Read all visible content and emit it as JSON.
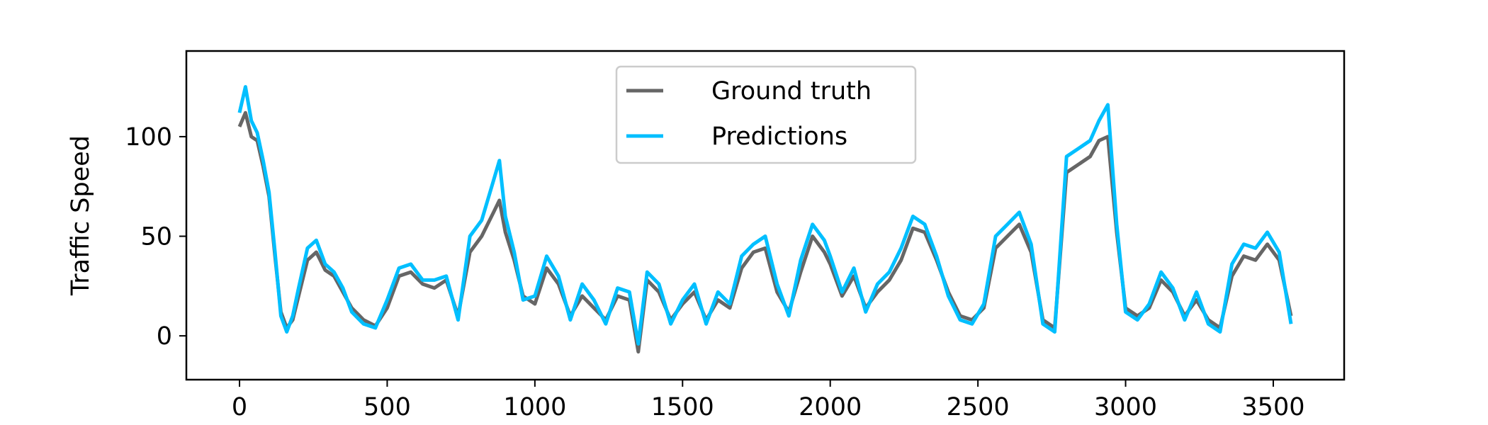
{
  "chart_data": {
    "type": "line",
    "title": "",
    "xlabel": "",
    "ylabel": "Traffic Speed",
    "xlim": [
      -180,
      3740
    ],
    "ylim": [
      -22,
      143
    ],
    "xticks": [
      0,
      500,
      1000,
      1500,
      2000,
      2500,
      3000,
      3500
    ],
    "yticks": [
      0,
      50,
      100
    ],
    "grid": false,
    "legend_position": "top-center",
    "series": [
      {
        "name": "Ground truth",
        "color": "#666666",
        "x": [
          0,
          20,
          40,
          60,
          80,
          100,
          120,
          140,
          160,
          180,
          200,
          230,
          260,
          290,
          320,
          350,
          380,
          420,
          460,
          500,
          540,
          580,
          620,
          660,
          700,
          740,
          780,
          820,
          860,
          880,
          900,
          930,
          960,
          1000,
          1040,
          1080,
          1120,
          1160,
          1200,
          1240,
          1280,
          1320,
          1350,
          1380,
          1420,
          1460,
          1500,
          1540,
          1580,
          1620,
          1660,
          1700,
          1740,
          1780,
          1820,
          1860,
          1900,
          1940,
          1980,
          2000,
          2040,
          2080,
          2120,
          2160,
          2200,
          2240,
          2280,
          2320,
          2360,
          2400,
          2440,
          2480,
          2520,
          2560,
          2600,
          2640,
          2680,
          2720,
          2760,
          2800,
          2840,
          2880,
          2910,
          2940,
          2970,
          3000,
          3040,
          3080,
          3120,
          3160,
          3200,
          3240,
          3280,
          3320,
          3360,
          3400,
          3440,
          3480,
          3520,
          3560
        ],
        "y": [
          105,
          112,
          100,
          98,
          85,
          70,
          40,
          12,
          4,
          8,
          20,
          38,
          42,
          33,
          30,
          22,
          14,
          8,
          5,
          14,
          30,
          32,
          26,
          24,
          28,
          10,
          42,
          50,
          62,
          68,
          52,
          38,
          20,
          16,
          34,
          26,
          10,
          20,
          14,
          8,
          20,
          18,
          -8,
          28,
          22,
          8,
          16,
          22,
          8,
          18,
          14,
          34,
          42,
          44,
          22,
          12,
          32,
          50,
          42,
          36,
          20,
          30,
          14,
          22,
          28,
          38,
          54,
          52,
          38,
          22,
          10,
          8,
          14,
          44,
          50,
          56,
          42,
          8,
          4,
          82,
          86,
          90,
          98,
          100,
          52,
          14,
          10,
          14,
          28,
          22,
          10,
          18,
          8,
          4,
          30,
          40,
          38,
          46,
          38,
          10
        ]
      },
      {
        "name": "Predictions",
        "color": "#00bfff",
        "x": [
          0,
          20,
          40,
          60,
          80,
          100,
          120,
          140,
          160,
          180,
          200,
          230,
          260,
          290,
          320,
          350,
          380,
          420,
          460,
          500,
          540,
          580,
          620,
          660,
          700,
          740,
          780,
          820,
          860,
          880,
          900,
          930,
          960,
          1000,
          1040,
          1080,
          1120,
          1160,
          1200,
          1240,
          1280,
          1320,
          1350,
          1380,
          1420,
          1460,
          1500,
          1540,
          1580,
          1620,
          1660,
          1700,
          1740,
          1780,
          1820,
          1860,
          1900,
          1940,
          1980,
          2000,
          2040,
          2080,
          2120,
          2160,
          2200,
          2240,
          2280,
          2320,
          2360,
          2400,
          2440,
          2480,
          2520,
          2560,
          2600,
          2640,
          2680,
          2720,
          2760,
          2800,
          2840,
          2880,
          2910,
          2940,
          2970,
          3000,
          3040,
          3080,
          3120,
          3160,
          3200,
          3240,
          3280,
          3320,
          3360,
          3400,
          3440,
          3480,
          3520,
          3560
        ],
        "y": [
          112,
          125,
          108,
          102,
          88,
          72,
          42,
          10,
          2,
          10,
          24,
          44,
          48,
          36,
          32,
          24,
          12,
          6,
          4,
          18,
          34,
          36,
          28,
          28,
          30,
          8,
          50,
          58,
          78,
          88,
          60,
          42,
          18,
          20,
          40,
          30,
          8,
          26,
          18,
          6,
          24,
          22,
          -4,
          32,
          26,
          6,
          18,
          26,
          6,
          22,
          16,
          40,
          46,
          50,
          26,
          10,
          38,
          56,
          48,
          40,
          22,
          34,
          12,
          26,
          32,
          44,
          60,
          56,
          40,
          20,
          8,
          6,
          16,
          50,
          56,
          62,
          46,
          6,
          2,
          90,
          94,
          98,
          108,
          116,
          56,
          12,
          8,
          16,
          32,
          24,
          8,
          22,
          6,
          2,
          36,
          46,
          44,
          52,
          42,
          6
        ]
      }
    ]
  }
}
